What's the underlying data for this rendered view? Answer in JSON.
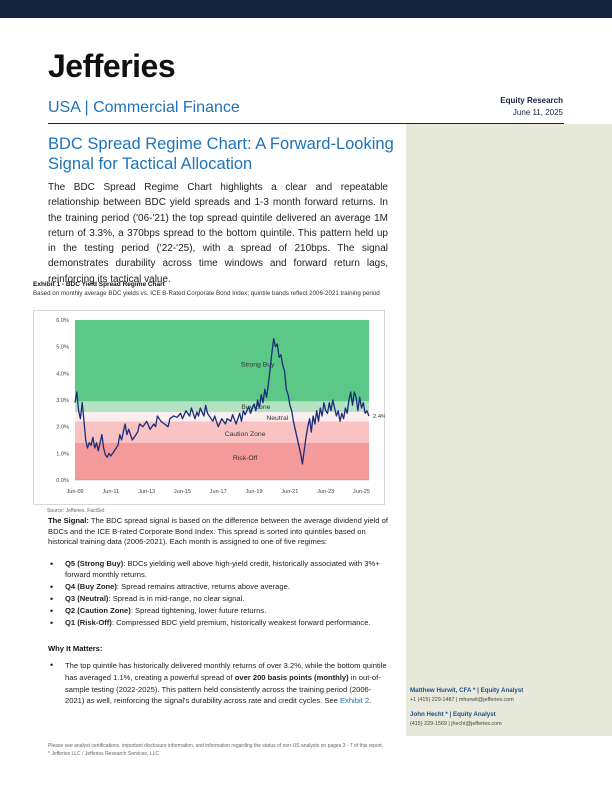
{
  "header": {
    "logo": "Jefferies",
    "division": "USA | Commercial Finance",
    "report_type": "Equity Research",
    "date": "June 11, 2025"
  },
  "title": "BDC Spread Regime Chart: A Forward-Looking Signal for Tactical Allocation",
  "intro": "The BDC Spread Regime Chart highlights a clear and repeatable relationship between BDC yield spreads and 1-3 month forward returns. In the training period ('06-'21) the top spread quintile delivered an average 1M return of 3.3%, a 370bps spread to the bottom quintile. This pattern held up in the testing period ('22-'25), with a spread of 210bps. The signal demonstrates durability across time windows and forward return lags, reinforcing its tactical value.",
  "exhibit": {
    "title": "Exhibit 1 - BDC Yield Spread Regime Chart",
    "subtitle": "Based on monthly average BDC yields vs. ICE B-Rated Corporate Bond Index; quintile bands reflect 2006-2021 training period",
    "source": "Source: Jefferies, FactSet"
  },
  "chart_data": {
    "type": "line",
    "title": "",
    "xlabel": "",
    "ylabel": "",
    "ylim": [
      0,
      6
    ],
    "y_ticks": [
      "0.0%",
      "1.0%",
      "2.0%",
      "3.0%",
      "4.0%",
      "5.0%",
      "6.0%"
    ],
    "x_ticks": [
      "Jun-09",
      "Jun-11",
      "Jun-13",
      "Jun-15",
      "Jun-17",
      "Jun-19",
      "Jun-21",
      "Jun-23",
      "Jun-25"
    ],
    "x_range": [
      2009.0,
      2025.42
    ],
    "bands": [
      {
        "label": "Risk-Off",
        "from": 0,
        "to": 1.4,
        "color": "#f59a9a"
      },
      {
        "label": "Caution Zone",
        "from": 1.4,
        "to": 2.2,
        "color": "#f9c3c3"
      },
      {
        "label": "Neutral",
        "from": 2.2,
        "to": 2.55,
        "color": "#fbeeee"
      },
      {
        "label": "Buy Zone",
        "from": 2.55,
        "to": 2.95,
        "color": "#b4e2c2"
      },
      {
        "label": "Strong Buy",
        "from": 2.95,
        "to": 6.0,
        "color": "#5cc887"
      }
    ],
    "last_value_label": "2.4%",
    "series": [
      {
        "color": "#1a2c7a",
        "points": [
          [
            2009.0,
            2.9
          ],
          [
            2009.1,
            3.3
          ],
          [
            2009.2,
            2.6
          ],
          [
            2009.3,
            2.3
          ],
          [
            2009.4,
            2.9
          ],
          [
            2009.5,
            2.2
          ],
          [
            2009.6,
            1.5
          ],
          [
            2009.7,
            1.2
          ],
          [
            2009.8,
            1.4
          ],
          [
            2009.9,
            1.3
          ],
          [
            2010.0,
            1.6
          ],
          [
            2010.1,
            1.2
          ],
          [
            2010.2,
            1.4
          ],
          [
            2010.3,
            1.1
          ],
          [
            2010.4,
            1.4
          ],
          [
            2010.5,
            1.7
          ],
          [
            2010.6,
            1.2
          ],
          [
            2010.7,
            0.95
          ],
          [
            2010.8,
            0.85
          ],
          [
            2010.9,
            1.0
          ],
          [
            2011.0,
            0.9
          ],
          [
            2011.2,
            1.1
          ],
          [
            2011.4,
            1.3
          ],
          [
            2011.5,
            1.7
          ],
          [
            2011.6,
            1.5
          ],
          [
            2011.7,
            1.8
          ],
          [
            2011.8,
            2.1
          ],
          [
            2011.9,
            1.7
          ],
          [
            2012.0,
            1.9
          ],
          [
            2012.2,
            1.5
          ],
          [
            2012.4,
            1.7
          ],
          [
            2012.5,
            1.8
          ],
          [
            2012.6,
            2.1
          ],
          [
            2012.8,
            2.0
          ],
          [
            2013.0,
            2.2
          ],
          [
            2013.2,
            1.9
          ],
          [
            2013.4,
            2.1
          ],
          [
            2013.5,
            2.0
          ],
          [
            2013.6,
            2.4
          ],
          [
            2013.8,
            2.2
          ],
          [
            2014.0,
            2.1
          ],
          [
            2014.2,
            2.0
          ],
          [
            2014.3,
            2.3
          ],
          [
            2014.5,
            2.4
          ],
          [
            2014.7,
            2.35
          ],
          [
            2014.9,
            2.5
          ],
          [
            2015.0,
            2.3
          ],
          [
            2015.2,
            2.6
          ],
          [
            2015.4,
            2.4
          ],
          [
            2015.5,
            2.7
          ],
          [
            2015.6,
            2.5
          ],
          [
            2015.7,
            2.3
          ],
          [
            2015.8,
            2.55
          ],
          [
            2015.9,
            2.4
          ],
          [
            2016.0,
            2.7
          ],
          [
            2016.2,
            2.4
          ],
          [
            2016.3,
            2.8
          ],
          [
            2016.4,
            2.5
          ],
          [
            2016.6,
            2.3
          ],
          [
            2016.7,
            2.2
          ],
          [
            2016.8,
            2.4
          ],
          [
            2016.9,
            2.2
          ],
          [
            2017.0,
            2.0
          ],
          [
            2017.2,
            2.3
          ],
          [
            2017.4,
            2.1
          ],
          [
            2017.5,
            2.3
          ],
          [
            2017.7,
            2.2
          ],
          [
            2017.8,
            2.45
          ],
          [
            2018.0,
            2.1
          ],
          [
            2018.2,
            2.5
          ],
          [
            2018.3,
            2.2
          ],
          [
            2018.4,
            2.6
          ],
          [
            2018.5,
            2.45
          ],
          [
            2018.7,
            2.75
          ],
          [
            2018.8,
            2.5
          ],
          [
            2019.0,
            2.85
          ],
          [
            2019.1,
            2.6
          ],
          [
            2019.2,
            3.0
          ],
          [
            2019.3,
            2.7
          ],
          [
            2019.4,
            3.2
          ],
          [
            2019.5,
            2.9
          ],
          [
            2019.6,
            3.4
          ],
          [
            2019.7,
            3.1
          ],
          [
            2019.8,
            3.6
          ],
          [
            2019.9,
            4.2
          ],
          [
            2020.0,
            4.8
          ],
          [
            2020.1,
            5.3
          ],
          [
            2020.2,
            5.0
          ],
          [
            2020.3,
            5.1
          ],
          [
            2020.4,
            4.6
          ],
          [
            2020.5,
            4.7
          ],
          [
            2020.6,
            4.3
          ],
          [
            2020.7,
            4.1
          ],
          [
            2020.8,
            3.4
          ],
          [
            2020.9,
            3.2
          ],
          [
            2021.0,
            2.8
          ],
          [
            2021.1,
            2.6
          ],
          [
            2021.2,
            2.2
          ],
          [
            2021.3,
            1.9
          ],
          [
            2021.4,
            1.6
          ],
          [
            2021.5,
            1.3
          ],
          [
            2021.6,
            1.0
          ],
          [
            2021.7,
            0.6
          ],
          [
            2021.8,
            1.1
          ],
          [
            2021.9,
            1.6
          ],
          [
            2022.0,
            2.0
          ],
          [
            2022.1,
            2.3
          ],
          [
            2022.2,
            1.8
          ],
          [
            2022.3,
            2.4
          ],
          [
            2022.4,
            2.1
          ],
          [
            2022.5,
            2.6
          ],
          [
            2022.6,
            2.2
          ],
          [
            2022.7,
            2.7
          ],
          [
            2022.8,
            2.4
          ],
          [
            2022.9,
            2.9
          ],
          [
            2023.0,
            2.6
          ],
          [
            2023.1,
            2.5
          ],
          [
            2023.2,
            2.9
          ],
          [
            2023.3,
            2.6
          ],
          [
            2023.4,
            3.0
          ],
          [
            2023.5,
            2.7
          ],
          [
            2023.6,
            2.4
          ],
          [
            2023.7,
            2.6
          ],
          [
            2023.8,
            2.2
          ],
          [
            2023.9,
            2.5
          ],
          [
            2024.0,
            2.3
          ],
          [
            2024.1,
            2.7
          ],
          [
            2024.2,
            2.5
          ],
          [
            2024.3,
            3.0
          ],
          [
            2024.4,
            3.3
          ],
          [
            2024.5,
            2.8
          ],
          [
            2024.6,
            3.3
          ],
          [
            2024.7,
            3.1
          ],
          [
            2024.8,
            2.6
          ],
          [
            2024.9,
            3.1
          ],
          [
            2025.0,
            2.7
          ],
          [
            2025.1,
            2.9
          ],
          [
            2025.2,
            2.5
          ],
          [
            2025.3,
            2.6
          ],
          [
            2025.42,
            2.4
          ]
        ]
      }
    ]
  },
  "signal": {
    "label": "The Signal:",
    "text": " The BDC spread signal is based on the difference between the average dividend yield of BDCs and the ICE B-rated Corporate Bond Index. This spread is sorted into quintiles based on historical training data (2006-2021). Each month is assigned to one of five regimes:"
  },
  "regimes": [
    {
      "name": "Q5 (Strong Buy)",
      "desc": ": BDCs yielding well above high-yield credit, historically associated with 3%+ forward monthly returns."
    },
    {
      "name": "Q4 (Buy Zone)",
      "desc": ": Spread remains attractive, returns above average."
    },
    {
      "name": "Q3 (Neutral)",
      "desc": ": Spread is in mid-range, no clear signal."
    },
    {
      "name": "Q2 (Caution Zone)",
      "desc": ": Spread tightening, lower future returns."
    },
    {
      "name": "Q1 (Risk-Off)",
      "desc": ": Compressed BDC yield premium, historically weakest forward performance."
    }
  ],
  "why": {
    "heading": "Why It Matters:",
    "text_a": "The top quintile has historically delivered monthly returns of over 3.2%, while the bottom quintile has averaged 1.1%, creating a powerful spread of ",
    "text_bold": "over 200 basis points (monthly)",
    "text_b": " in out-of-sample testing (2022-2025). This pattern held consistently across the training period (2006-2021) as well, reinforcing the signal's durability across rate and credit cycles. See ",
    "link": "Exhibit 2",
    "text_c": "."
  },
  "analysts": [
    {
      "name": "Matthew Hurwit, CFA * | Equity Analyst",
      "contact": "+1 (415) 229-1487 | mhurwit@jefferies.com"
    },
    {
      "name": "John Hecht * | Equity Analyst",
      "contact": "(415) 229-1569 | jhecht@jefferies.com"
    }
  ],
  "disclaimer": {
    "line1": "Please see analyst certifications, important disclosure information, and information regarding the status of non-US analysts on pages 3 - 7 of this report.",
    "line2": "* Jefferies LLC / Jefferies Research Services, LLC"
  },
  "colors": {
    "brand_navy": "#14243f",
    "accent_blue": "#1e73b8",
    "sidebar": "#e7eadb"
  }
}
